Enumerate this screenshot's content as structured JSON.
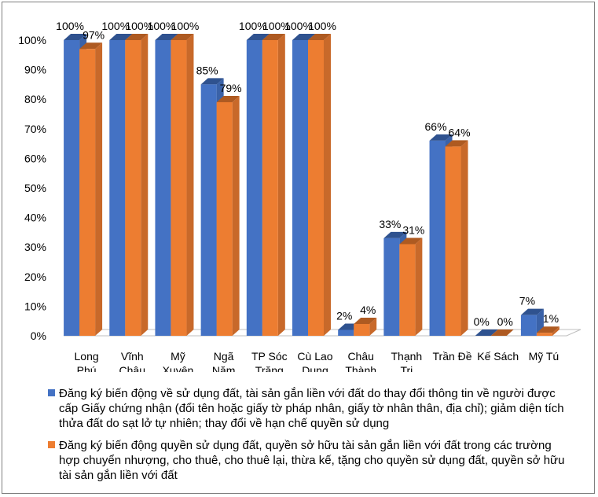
{
  "chart_data": {
    "type": "bar",
    "style": "3d-clustered-column",
    "categories": [
      [
        "Long",
        "Phú"
      ],
      [
        "Vĩnh",
        "Châu"
      ],
      [
        "Mỹ",
        "Xuyên"
      ],
      [
        "Ngã",
        "Năm"
      ],
      [
        "TP Sóc",
        "Trăng"
      ],
      [
        "Cù Lao",
        "Dung"
      ],
      [
        "Châu",
        "Thành"
      ],
      [
        "Thạnh",
        "Trị"
      ],
      [
        "Trần Đề"
      ],
      [
        "Kế Sách"
      ],
      [
        "Mỹ Tú"
      ]
    ],
    "series": [
      {
        "name": "Đăng ký biến động về sử dụng đất, tài sản gắn liền với đất do thay đổi thông tin về người được cấp Giấy chứng nhận (đổi tên hoặc giấy tờ pháp nhân, giấy tờ nhân thân, địa chỉ); giảm diện tích thửa đất do sạt lở tự nhiên; thay đổi về hạn chế quyền sử dụng",
        "color": "#4472c4",
        "values": [
          100,
          100,
          100,
          85,
          100,
          100,
          2,
          33,
          66,
          0,
          7
        ],
        "labels": [
          "100%",
          "100%",
          "100%",
          "85%",
          "100%",
          "100%",
          "2%",
          "33%",
          "66%",
          "0%",
          "7%"
        ]
      },
      {
        "name": "Đăng ký biến động quyền sử dụng đất, quyền sở hữu tài sản gắn liền với đất trong các trường hợp chuyển nhượng, cho thuê, cho thuê lại, thừa kế, tặng cho quyền sử dụng đất, quyền sở hữu tài sản gắn liền với đất",
        "color": "#ed7d31",
        "values": [
          97,
          100,
          100,
          79,
          100,
          100,
          4,
          31,
          64,
          0,
          1
        ],
        "labels": [
          "97%",
          "100%",
          "100%",
          "79%",
          "100%",
          "100%",
          "4%",
          "31%",
          "64%",
          "0%",
          "1%"
        ]
      }
    ],
    "ylim": [
      0,
      100
    ],
    "yticks": [
      "0%",
      "10%",
      "20%",
      "30%",
      "40%",
      "50%",
      "60%",
      "70%",
      "80%",
      "90%",
      "100%"
    ],
    "grid": false,
    "legend_position": "bottom"
  }
}
